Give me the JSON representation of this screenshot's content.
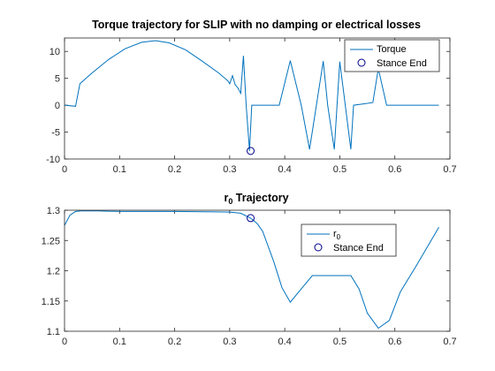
{
  "colors": {
    "line": "#0072BD",
    "marker": "#00008B",
    "axis": "#262626"
  },
  "chart_data": [
    {
      "type": "line",
      "title": "Torque trajectory for SLIP with no damping or electrical losses",
      "xlim": [
        0,
        0.7
      ],
      "ylim": [
        -10,
        12.5
      ],
      "xticks": [
        0,
        0.1,
        0.2,
        0.3,
        0.4,
        0.5,
        0.6,
        0.7
      ],
      "yticks": [
        -10,
        -5,
        0,
        5,
        10
      ],
      "xtick_labels": [
        "0",
        "0.1",
        "0.2",
        "0.3",
        "0.4",
        "0.5",
        "0.6",
        "0.7"
      ],
      "ytick_labels": [
        "-10",
        "-5",
        "0",
        "5",
        "10"
      ],
      "legend_position": "top-right",
      "series": [
        {
          "name": "Torque",
          "x": [
            0,
            0.02,
            0.028,
            0.05,
            0.08,
            0.11,
            0.14,
            0.165,
            0.19,
            0.22,
            0.25,
            0.28,
            0.297,
            0.3,
            0.305,
            0.31,
            0.315,
            0.32,
            0.325,
            0.33,
            0.336,
            0.34,
            0.355,
            0.39,
            0.41,
            0.43,
            0.445,
            0.47,
            0.478,
            0.49,
            0.5,
            0.52,
            0.525,
            0.54,
            0.56,
            0.57,
            0.585,
            0.6,
            0.68
          ],
          "y": [
            0,
            -0.2,
            4,
            6,
            8.5,
            10.5,
            11.7,
            12,
            11.6,
            10.3,
            8.2,
            6,
            4.5,
            4,
            5.5,
            3.8,
            3.2,
            2.2,
            9.2,
            0,
            -8.5,
            0,
            0,
            0,
            8.3,
            0,
            -8.2,
            8.2,
            0,
            -8.2,
            8.1,
            -8.2,
            0,
            0.2,
            0.5,
            6.8,
            0,
            0,
            0
          ]
        },
        {
          "name": "Stance End",
          "marker_only": true,
          "x": [
            0.338
          ],
          "y": [
            -8.5
          ]
        }
      ]
    },
    {
      "type": "line",
      "title": "r",
      "title_subscript": "0",
      "title_suffix": " Trajectory",
      "xlim": [
        0,
        0.7
      ],
      "ylim": [
        1.1,
        1.3
      ],
      "xticks": [
        0,
        0.1,
        0.2,
        0.3,
        0.4,
        0.5,
        0.6,
        0.7
      ],
      "yticks": [
        1.1,
        1.15,
        1.2,
        1.25,
        1.3
      ],
      "xtick_labels": [
        "0",
        "0.1",
        "0.2",
        "0.3",
        "0.4",
        "0.5",
        "0.6",
        "0.7"
      ],
      "ytick_labels": [
        "1.1",
        "1.15",
        "1.2",
        "1.25",
        "1.3"
      ],
      "legend_position": "top-right",
      "series": [
        {
          "name": "r",
          "name_subscript": "0",
          "x": [
            0,
            0.01,
            0.02,
            0.03,
            0.06,
            0.1,
            0.2,
            0.3,
            0.32,
            0.338,
            0.35,
            0.36,
            0.38,
            0.395,
            0.41,
            0.43,
            0.45,
            0.47,
            0.5,
            0.52,
            0.535,
            0.55,
            0.57,
            0.59,
            0.61,
            0.64,
            0.68
          ],
          "y": [
            1.275,
            1.292,
            1.298,
            1.299,
            1.299,
            1.298,
            1.298,
            1.297,
            1.295,
            1.287,
            1.278,
            1.265,
            1.215,
            1.172,
            1.148,
            1.17,
            1.192,
            1.192,
            1.192,
            1.192,
            1.17,
            1.13,
            1.105,
            1.118,
            1.165,
            1.21,
            1.272
          ]
        },
        {
          "name": "Stance End",
          "marker_only": true,
          "x": [
            0.338
          ],
          "y": [
            1.287
          ]
        }
      ]
    }
  ]
}
